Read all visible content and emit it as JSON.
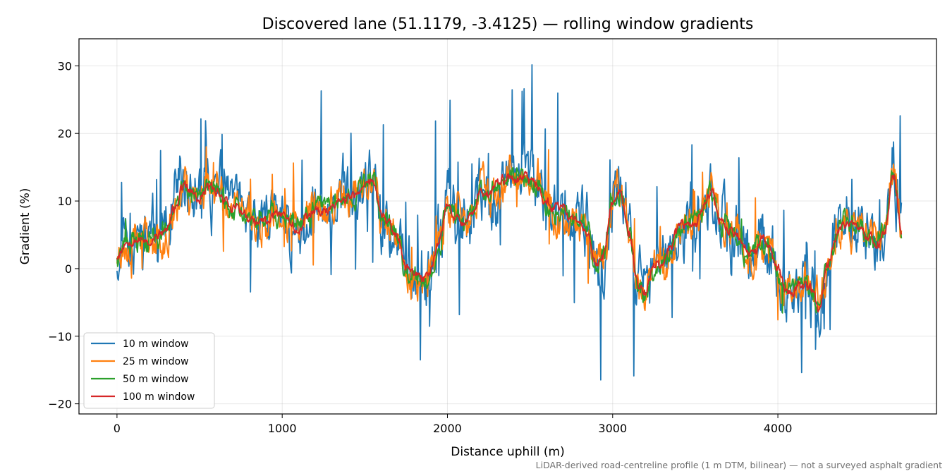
{
  "chart_data": {
    "type": "line",
    "title": "Discovered lane (51.1179, -3.4125) — rolling window gradients",
    "xlabel": "Distance uphill (m)",
    "ylabel": "Gradient (%)",
    "xlim": [
      -230,
      4960
    ],
    "ylim": [
      -21.5,
      34
    ],
    "xticks": [
      0,
      1000,
      2000,
      3000,
      4000
    ],
    "yticks": [
      -20,
      -10,
      0,
      10,
      20,
      30
    ],
    "xtick_labels": [
      "0",
      "1000",
      "2000",
      "3000",
      "4000"
    ],
    "ytick_labels": [
      "−20",
      "−10",
      "0",
      "10",
      "20",
      "30"
    ],
    "grid": true,
    "legend_position": "lower-left",
    "footnote": "LiDAR-derived road-centreline profile (1 m DTM, bilinear) — not a surveyed asphalt gradient",
    "base_profile": {
      "x": [
        0,
        50,
        100,
        150,
        200,
        250,
        300,
        350,
        400,
        450,
        500,
        550,
        600,
        650,
        700,
        750,
        800,
        850,
        900,
        950,
        1000,
        1050,
        1100,
        1150,
        1200,
        1250,
        1300,
        1350,
        1400,
        1450,
        1500,
        1550,
        1600,
        1650,
        1700,
        1750,
        1800,
        1850,
        1900,
        1950,
        2000,
        2050,
        2100,
        2150,
        2200,
        2250,
        2300,
        2350,
        2400,
        2450,
        2500,
        2550,
        2600,
        2650,
        2700,
        2750,
        2800,
        2850,
        2900,
        2950,
        3000,
        3050,
        3100,
        3150,
        3200,
        3250,
        3300,
        3350,
        3400,
        3450,
        3500,
        3550,
        3600,
        3650,
        3700,
        3750,
        3800,
        3850,
        3900,
        3950,
        4000,
        4050,
        4100,
        4150,
        4200,
        4250,
        4300,
        4350,
        4400,
        4450,
        4500,
        4550,
        4600,
        4650,
        4700,
        4750
      ],
      "y": [
        2,
        4,
        4.5,
        4,
        4,
        5,
        5.5,
        9,
        12,
        11.5,
        10,
        12.5,
        11.5,
        10.5,
        9,
        8.5,
        7,
        6.5,
        7,
        8,
        8.5,
        7,
        6,
        7.5,
        9,
        8.5,
        9,
        10.5,
        10.5,
        11,
        12.5,
        13,
        8,
        6.5,
        4.5,
        0,
        -1,
        -1.5,
        0,
        4,
        10,
        8,
        7,
        8,
        11.5,
        11,
        12.5,
        13,
        13.5,
        14,
        13,
        12,
        9.5,
        9,
        8.5,
        8,
        6.5,
        5,
        0.5,
        2,
        10.5,
        11,
        5,
        -2,
        -3.5,
        0.5,
        1,
        3,
        6,
        6.5,
        6.5,
        9,
        11.5,
        7.5,
        6,
        5,
        3,
        2,
        4,
        3.5,
        0,
        -3,
        -3,
        -2,
        -2.5,
        -6,
        0,
        5,
        7,
        6.5,
        6,
        5,
        3.5,
        6,
        14,
        6
      ]
    },
    "series": [
      {
        "name": "10 m window",
        "color": "#1f77b4",
        "noise": 4.2,
        "spike": 0.05,
        "spike_amp": 12,
        "seed": 11
      },
      {
        "name": "25 m window",
        "color": "#ff7f0e",
        "noise": 2.6,
        "spike": 0.02,
        "spike_amp": 7,
        "seed": 23
      },
      {
        "name": "50 m window",
        "color": "#2ca02c",
        "noise": 1.5,
        "spike": 0.005,
        "spike_amp": 3,
        "seed": 37
      },
      {
        "name": "100 m window",
        "color": "#d62728",
        "noise": 0.7,
        "spike": 0,
        "spike_amp": 0,
        "seed": 53
      }
    ]
  }
}
